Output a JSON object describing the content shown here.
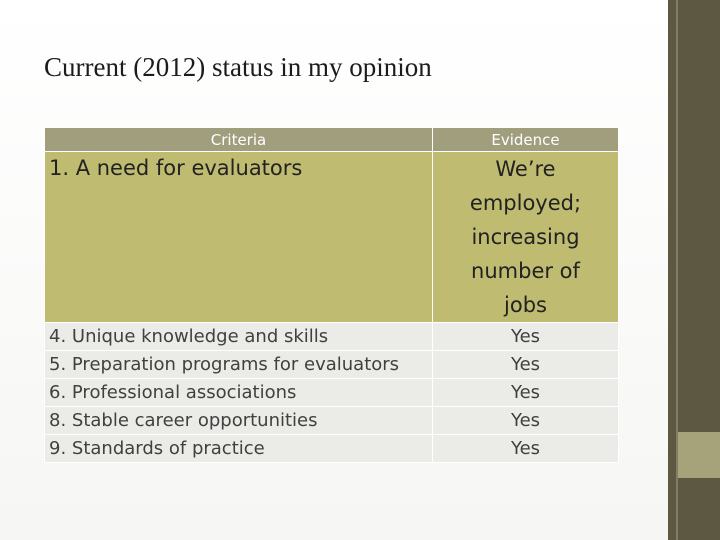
{
  "header": {
    "title": "Current (2012) status in my opinion"
  },
  "table": {
    "columns": [
      "Criteria",
      "Evidence"
    ],
    "rows": [
      [
        "1. A need for evaluators",
        "We’re employed; increasing number of jobs"
      ],
      [
        "4. Unique knowledge and skills",
        "Yes"
      ],
      [
        "5. Preparation programs for evaluators",
        "Yes"
      ],
      [
        "6. Professional associations",
        "Yes"
      ],
      [
        "8. Stable career opportunities",
        "Yes"
      ],
      [
        "9. Standards of practice",
        "Yes"
      ]
    ]
  }
}
